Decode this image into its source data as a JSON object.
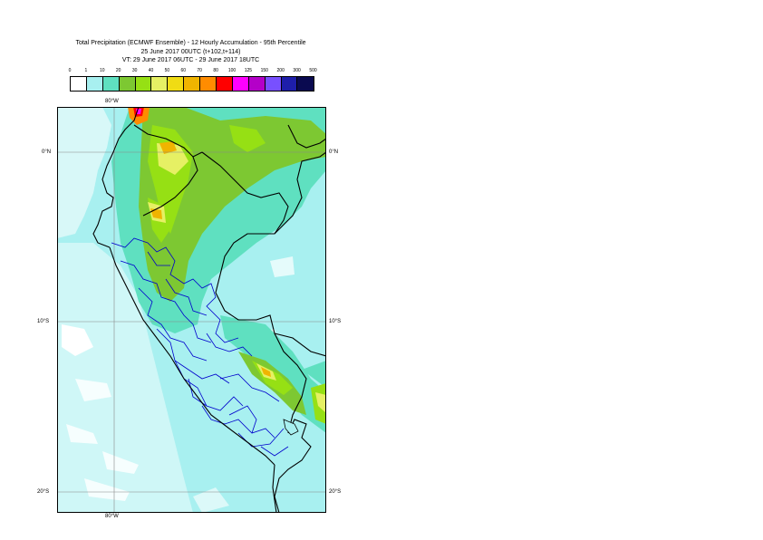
{
  "title": {
    "line1": "Total Precipitation (ECMWF Ensemble) - 12 Hourly Accumulation - 95th Percentile",
    "line2": "25 June 2017 00UTC (t+102,t+114)",
    "line3": "VT: 29 June 2017 06UTC - 29 June 2017 18UTC"
  },
  "legend": {
    "thresholds": [
      "0",
      "1",
      "10",
      "20",
      "30",
      "40",
      "50",
      "60",
      "70",
      "80",
      "100",
      "125",
      "150",
      "200",
      "300",
      "500"
    ],
    "colors": [
      "#ffffff",
      "#a8f0f0",
      "#5fe0c0",
      "#7dc832",
      "#96e014",
      "#e6f064",
      "#f0dc14",
      "#f0b400",
      "#ff8c00",
      "#ff0000",
      "#ff00ff",
      "#b400c8",
      "#7850ff",
      "#1e1eaa",
      "#0a0a50"
    ]
  },
  "map": {
    "lon_label_top": "80°W",
    "lon_label_bottom": "80°W",
    "lat_labels": [
      "0°N",
      "10°S",
      "20°S"
    ],
    "background_color": "#a8f0f0",
    "country_border_color": "#000000",
    "region_border_color": "#0000cc"
  }
}
